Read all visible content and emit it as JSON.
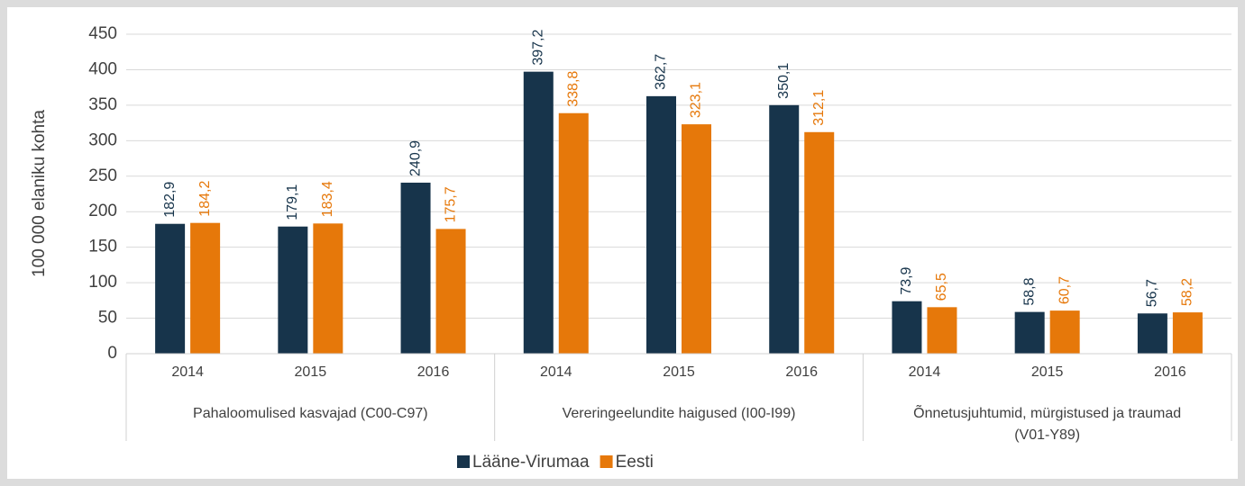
{
  "chart_data": {
    "type": "bar",
    "y_axis_label": "100 000 elaniku kohta",
    "groups": [
      {
        "name": [
          "Pahaloomulised kasvajad (C00-C97)"
        ],
        "categories": [
          "2014",
          "2015",
          "2016"
        ]
      },
      {
        "name": [
          "Vereringeelundite haigused (I00-I99)"
        ],
        "categories": [
          "2014",
          "2015",
          "2016"
        ]
      },
      {
        "name": [
          "Õnnetusjuhtumid, mürgistused ja traumad",
          "(V01-Y89)"
        ],
        "categories": [
          "2014",
          "2015",
          "2016"
        ]
      }
    ],
    "series": [
      {
        "name": "Lääne-Virumaa",
        "color": "#17344b",
        "values": [
          182.9,
          179.1,
          240.9,
          397.2,
          362.7,
          350.1,
          73.9,
          58.8,
          56.7
        ],
        "value_labels": [
          "182,9",
          "179,1",
          "240,9",
          "397,2",
          "362,7",
          "350,1",
          "73,9",
          "58,8",
          "56,7"
        ]
      },
      {
        "name": "Eesti",
        "color": "#e6780a",
        "values": [
          184.2,
          183.4,
          175.7,
          338.8,
          323.1,
          312.1,
          65.5,
          60.7,
          58.2
        ],
        "value_labels": [
          "184,2",
          "183,4",
          "175,7",
          "338,8",
          "323,1",
          "312,1",
          "65,5",
          "60,7",
          "58,2"
        ]
      }
    ],
    "ylim": [
      0,
      450
    ],
    "yticks": [
      0,
      50,
      100,
      150,
      200,
      250,
      300,
      350,
      400,
      450
    ],
    "grid": true,
    "legend": "bottom"
  }
}
